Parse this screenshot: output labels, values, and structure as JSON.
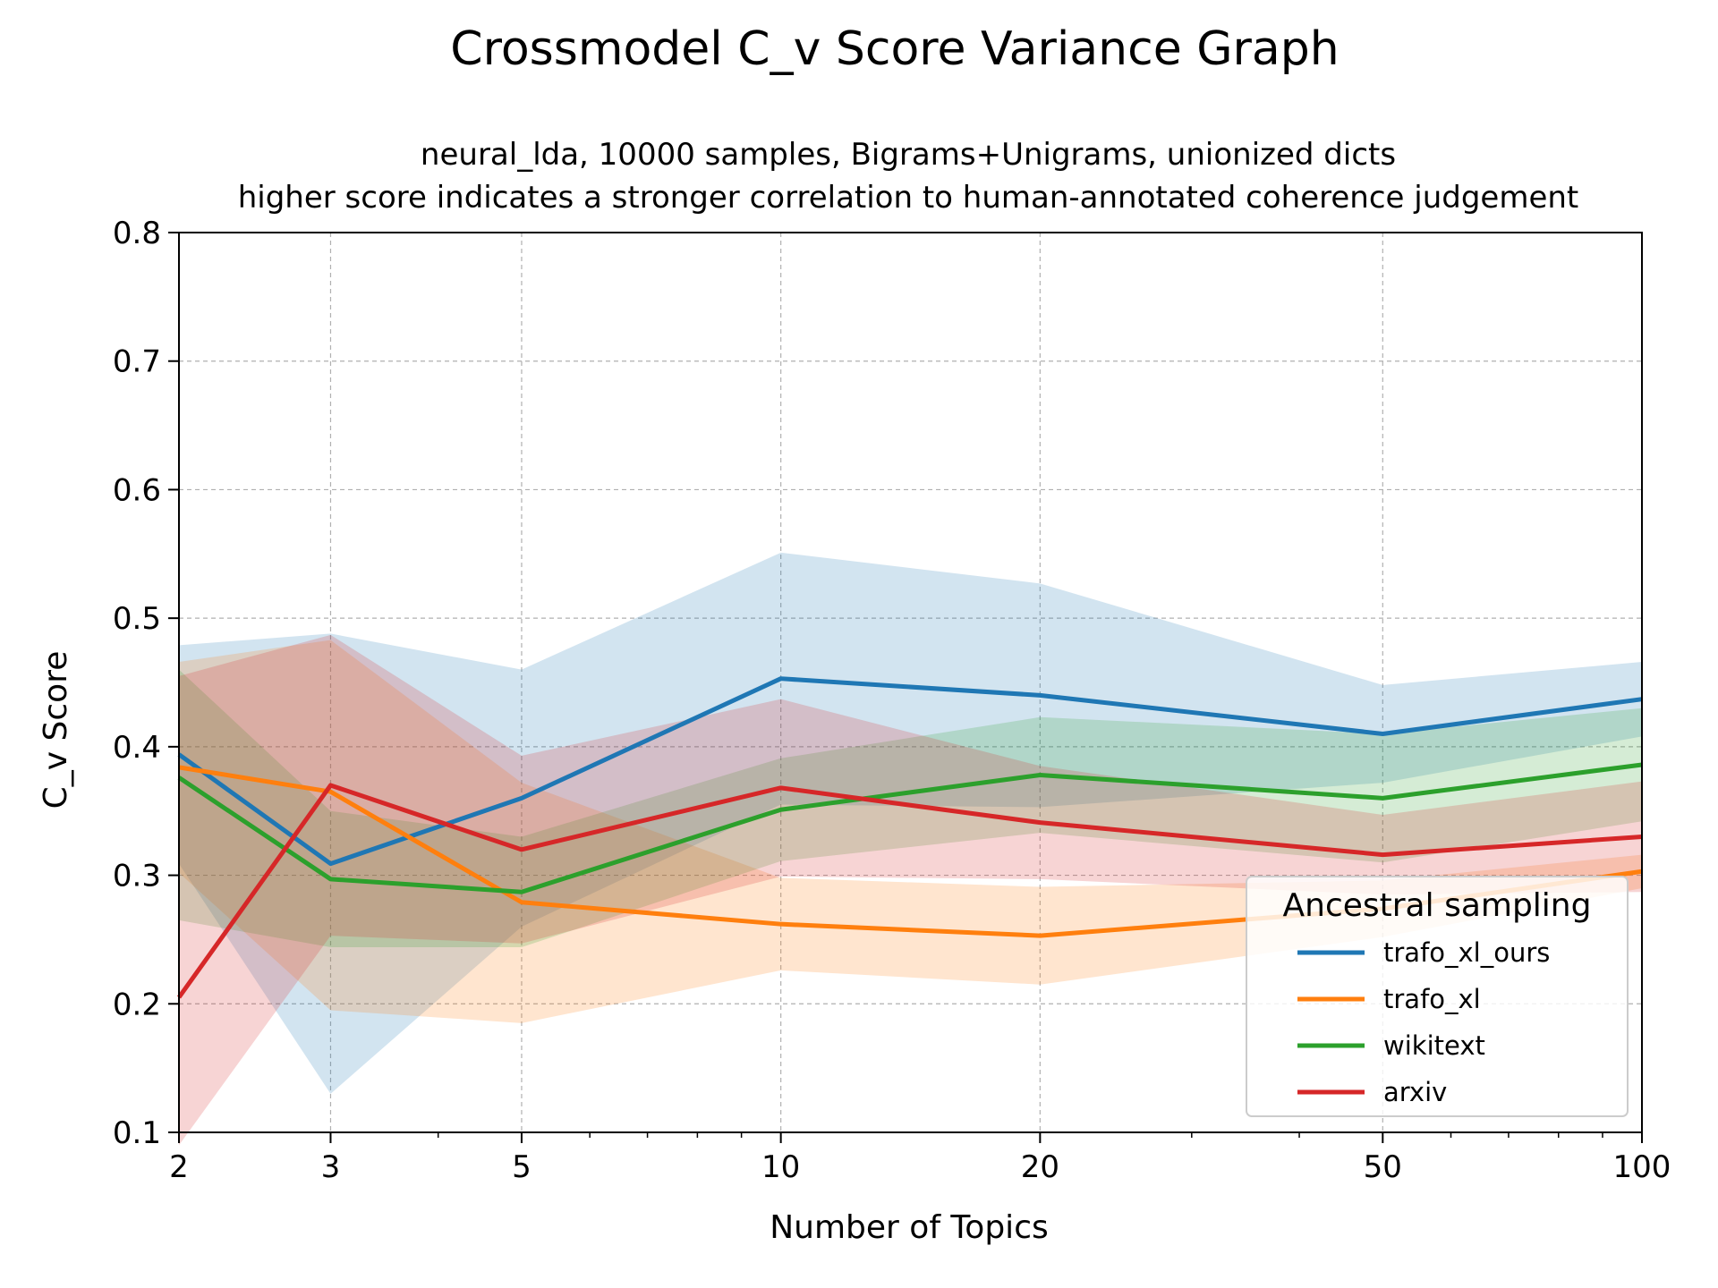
{
  "chart_data": {
    "type": "line",
    "title": "Crossmodel C_v Score Variance Graph",
    "subtitle_lines": [
      "neural_lda, 10000 samples, Bigrams+Unigrams, unionized dicts",
      "higher score indicates a stronger correlation to human-annotated coherence judgement"
    ],
    "xlabel": "Number of Topics",
    "ylabel": "C_v Score",
    "x_scale": "log",
    "x": [
      2,
      3,
      5,
      10,
      20,
      50,
      100
    ],
    "x_tick_labels": [
      "2",
      "3",
      "5",
      "10",
      "20",
      "50",
      "100"
    ],
    "xlim": [
      2,
      100
    ],
    "ylim": [
      0.1,
      0.8
    ],
    "y_ticks": [
      "0.1",
      "0.2",
      "0.3",
      "0.4",
      "0.5",
      "0.6",
      "0.7",
      "0.8"
    ],
    "grid": true,
    "legend": {
      "title": "Ancestral sampling",
      "placement": "bottom-right"
    },
    "series": [
      {
        "name": "trafo_xl_ours",
        "color": "#1f77b4",
        "values": [
          0.394,
          0.309,
          0.36,
          0.453,
          0.44,
          0.41,
          0.437
        ],
        "upper": [
          0.479,
          0.488,
          0.46,
          0.551,
          0.527,
          0.448,
          0.466
        ],
        "lower": [
          0.309,
          0.13,
          0.26,
          0.355,
          0.353,
          0.372,
          0.408
        ]
      },
      {
        "name": "trafo_xl",
        "color": "#ff7f0e",
        "values": [
          0.384,
          0.365,
          0.279,
          0.262,
          0.253,
          0.274,
          0.303
        ],
        "upper": [
          0.466,
          0.483,
          0.372,
          0.298,
          0.291,
          0.296,
          0.316
        ],
        "lower": [
          0.302,
          0.195,
          0.185,
          0.226,
          0.215,
          0.252,
          0.29
        ]
      },
      {
        "name": "wikitext",
        "color": "#2ca02c",
        "values": [
          0.376,
          0.297,
          0.287,
          0.351,
          0.378,
          0.36,
          0.386
        ],
        "upper": [
          0.46,
          0.35,
          0.33,
          0.391,
          0.423,
          0.41,
          0.43
        ],
        "lower": [
          0.265,
          0.244,
          0.244,
          0.311,
          0.333,
          0.31,
          0.342
        ]
      },
      {
        "name": "arxiv",
        "color": "#d62728",
        "values": [
          0.205,
          0.37,
          0.32,
          0.368,
          0.341,
          0.316,
          0.33
        ],
        "upper": [
          0.455,
          0.487,
          0.393,
          0.437,
          0.385,
          0.347,
          0.373
        ],
        "lower": [
          0.09,
          0.253,
          0.247,
          0.299,
          0.297,
          0.285,
          0.287
        ]
      }
    ]
  }
}
